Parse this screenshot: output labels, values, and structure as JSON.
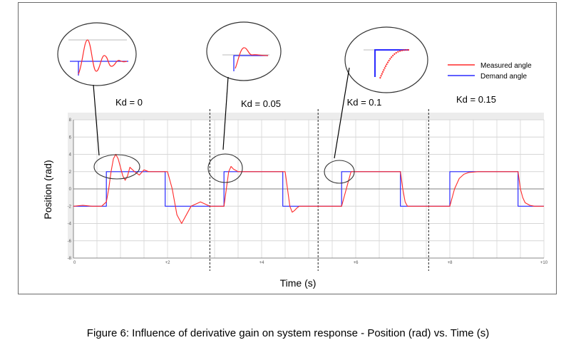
{
  "figure": {
    "caption": "Figure 6: Influence of derivative gain on system response - Position (rad) vs. Time (s)"
  },
  "chart_data": {
    "type": "line",
    "xlabel": "Time (s)",
    "ylabel": "Position (rad)",
    "xlim": [
      0,
      10
    ],
    "ylim": [
      -8,
      8
    ],
    "x_ticks": [
      0,
      2,
      4,
      6,
      8,
      10
    ],
    "x_tick_labels": [
      "0",
      "+2",
      "+4",
      "+6",
      "+8",
      "+10"
    ],
    "y_ticks": [
      8,
      6,
      4,
      2,
      0,
      -2,
      -4,
      -6,
      -8
    ],
    "y_tick_labels": [
      "8",
      "6",
      "4",
      "2",
      "0",
      "-2",
      "-4",
      "-6",
      "-8"
    ],
    "grid": true,
    "legend_position": "top-right",
    "colors": {
      "measured": "#ff2a2a",
      "demand": "#2a2aff",
      "plot_bg": "#ececec"
    },
    "section_labels": [
      "Kd = 0",
      "Kd = 0.05",
      "Kd = 0.1",
      "Kd = 0.15"
    ],
    "section_dividers": [
      2.9,
      5.2,
      7.55
    ],
    "series": [
      {
        "name": "Measured angle",
        "color": "#ff2a2a",
        "x": [
          0,
          0.2,
          0.4,
          0.6,
          0.7,
          0.75,
          0.8,
          0.85,
          0.9,
          0.95,
          1.0,
          1.05,
          1.1,
          1.15,
          1.2,
          1.3,
          1.4,
          1.5,
          1.6,
          1.7,
          1.8,
          1.9,
          2.0,
          2.1,
          2.2,
          2.3,
          2.5,
          2.7,
          2.9,
          3.0,
          3.2,
          3.25,
          3.3,
          3.35,
          3.4,
          3.5,
          3.6,
          3.8,
          4.2,
          4.5,
          4.55,
          4.6,
          4.65,
          4.7,
          4.75,
          4.8,
          4.9,
          5.0,
          5.2,
          5.7,
          5.75,
          5.8,
          5.85,
          5.9,
          6.0,
          6.5,
          6.95,
          7.0,
          7.05,
          7.1,
          7.15,
          7.2,
          7.55,
          8.0,
          8.05,
          8.1,
          8.2,
          8.3,
          8.4,
          8.6,
          9.0,
          9.45,
          9.5,
          9.55,
          9.6,
          9.7,
          9.8,
          9.9,
          10.0
        ],
        "y": [
          -2,
          -1.9,
          -2,
          -2,
          -1.5,
          0,
          2,
          3.5,
          4,
          3.5,
          2.5,
          1.5,
          1,
          1.5,
          2.5,
          2,
          1.6,
          2.2,
          2,
          2,
          2,
          2,
          2,
          0,
          -3,
          -4,
          -2,
          -1.5,
          -2,
          -2,
          -2,
          0,
          2,
          2.6,
          2.3,
          2,
          2,
          2,
          2,
          2,
          0,
          -2,
          -2.7,
          -2.5,
          -2.2,
          -2,
          -2,
          -2,
          -2,
          -2,
          -1,
          0,
          1,
          2,
          2,
          2,
          2,
          0,
          -1.5,
          -2,
          -2,
          -2,
          -2,
          -2,
          -1,
          0,
          1.2,
          1.7,
          1.9,
          2,
          2,
          2,
          0,
          -1,
          -1.6,
          -1.9,
          -2,
          -2,
          -2
        ]
      },
      {
        "name": "Demand angle",
        "color": "#2a2aff",
        "x": [
          0,
          0.7,
          0.7,
          1.95,
          1.95,
          3.2,
          3.2,
          4.45,
          4.45,
          5.7,
          5.7,
          6.95,
          6.95,
          8.0,
          8.0,
          9.45,
          9.45,
          10.0
        ],
        "y": [
          -2,
          -2,
          2,
          2,
          -2,
          -2,
          2,
          2,
          -2,
          -2,
          2,
          2,
          -2,
          -2,
          2,
          2,
          -2,
          -2
        ]
      }
    ]
  }
}
